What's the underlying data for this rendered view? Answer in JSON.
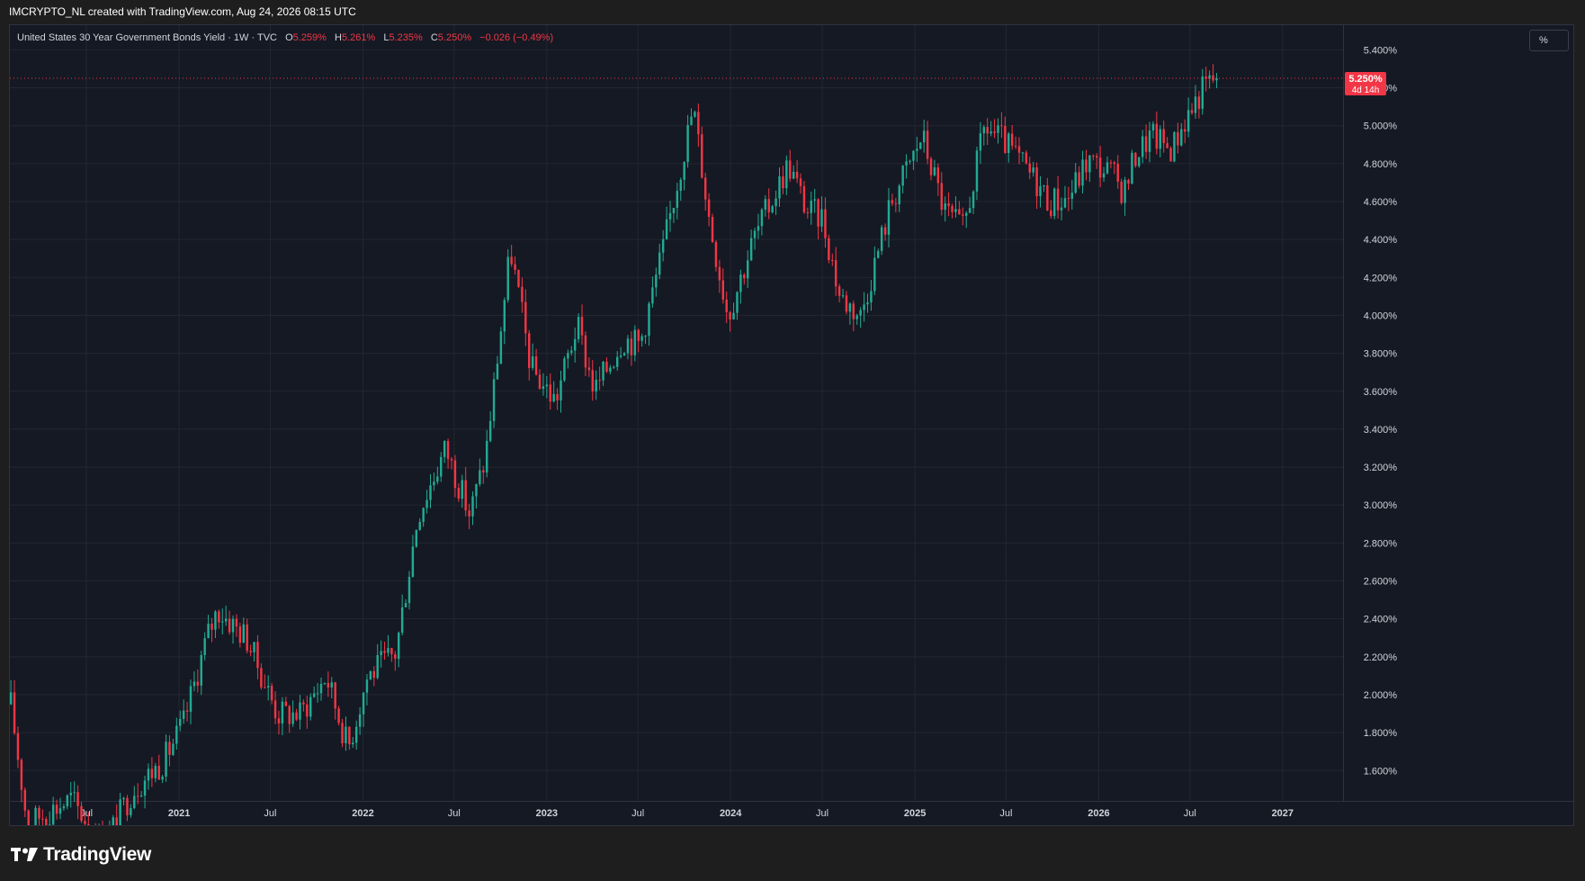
{
  "header": {
    "attribution": "IMCRYPTO_NL created with TradingView.com, Aug 24, 2026 08:15 UTC"
  },
  "legend": {
    "symbol": "United States 30 Year Government Bonds Yield · 1W · TVC",
    "o_label": "O",
    "o_value": "5.259%",
    "h_label": "H",
    "h_value": "5.261%",
    "l_label": "L",
    "l_value": "5.235%",
    "c_label": "C",
    "c_value": "5.250%",
    "change": "−0.026 (−0.49%)"
  },
  "scale_button": {
    "label": "%"
  },
  "price_badge": {
    "value": "5.250%",
    "countdown": "4d 14h"
  },
  "footer": {
    "brand": "TradingView"
  },
  "colors": {
    "up": "#22ab94",
    "down": "#f23645",
    "background": "#151923",
    "grid": "#232733",
    "axis_text": "#d1d4dc"
  },
  "chart_data": {
    "type": "candlestick",
    "title": "United States 30 Year Government Bonds Yield",
    "interval": "1W",
    "y_unit": "%",
    "y_ticks": [
      "1.600%",
      "1.800%",
      "2.000%",
      "2.200%",
      "2.400%",
      "2.600%",
      "2.800%",
      "3.000%",
      "3.200%",
      "3.400%",
      "3.600%",
      "3.800%",
      "4.000%",
      "4.200%",
      "4.400%",
      "4.600%",
      "4.800%",
      "5.000%",
      "5.200%",
      "5.400%"
    ],
    "y_range": [
      1.44,
      5.53
    ],
    "x_ticks": [
      "Jul",
      "2021",
      "Jul",
      "2022",
      "Jul",
      "2023",
      "Jul",
      "2024",
      "Jul",
      "2025",
      "Jul",
      "2026",
      "Jul",
      "2027"
    ],
    "x_range": [
      "2020-01-31",
      "2027-05-01"
    ],
    "last_price": 5.25,
    "grid": true,
    "anchors": [
      [
        "2020-02-02",
        1.95
      ],
      [
        "2020-03-09",
        1.25
      ],
      [
        "2020-03-23",
        1.35
      ],
      [
        "2020-06-01",
        1.45
      ],
      [
        "2020-08-03",
        1.2
      ],
      [
        "2020-10-01",
        1.5
      ],
      [
        "2020-12-01",
        1.65
      ],
      [
        "2021-01-10",
        1.85
      ],
      [
        "2021-02-25",
        2.3
      ],
      [
        "2021-03-18",
        2.45
      ],
      [
        "2021-05-15",
        2.3
      ],
      [
        "2021-07-15",
        1.9
      ],
      [
        "2021-08-30",
        1.9
      ],
      [
        "2021-10-20",
        2.1
      ],
      [
        "2021-12-03",
        1.72
      ],
      [
        "2022-01-10",
        2.1
      ],
      [
        "2022-03-07",
        2.22
      ],
      [
        "2022-04-20",
        2.95
      ],
      [
        "2022-06-14",
        3.3
      ],
      [
        "2022-08-01",
        2.95
      ],
      [
        "2022-09-01",
        3.25
      ],
      [
        "2022-10-21",
        4.35
      ],
      [
        "2022-12-01",
        3.72
      ],
      [
        "2023-01-18",
        3.55
      ],
      [
        "2023-03-02",
        3.95
      ],
      [
        "2023-04-06",
        3.6
      ],
      [
        "2023-06-01",
        3.88
      ],
      [
        "2023-07-05",
        3.85
      ],
      [
        "2023-08-20",
        4.35
      ],
      [
        "2023-10-19",
        5.1
      ],
      [
        "2023-11-20",
        4.5
      ],
      [
        "2023-12-27",
        4.0
      ],
      [
        "2024-02-15",
        4.4
      ],
      [
        "2024-04-25",
        4.8
      ],
      [
        "2024-06-01",
        4.55
      ],
      [
        "2024-07-01",
        4.52
      ],
      [
        "2024-08-05",
        4.1
      ],
      [
        "2024-09-15",
        4.0
      ],
      [
        "2024-11-15",
        4.6
      ],
      [
        "2024-12-30",
        4.85
      ],
      [
        "2025-01-15",
        4.95
      ],
      [
        "2025-03-01",
        4.55
      ],
      [
        "2025-04-07",
        4.45
      ],
      [
        "2025-05-20",
        5.0
      ],
      [
        "2025-07-01",
        4.9
      ],
      [
        "2025-09-01",
        4.7
      ],
      [
        "2025-09-25",
        4.6
      ],
      [
        "2025-11-01",
        4.62
      ],
      [
        "2025-12-10",
        4.82
      ],
      [
        "2026-01-26",
        4.75
      ],
      [
        "2026-02-20",
        4.65
      ],
      [
        "2026-03-15",
        4.85
      ],
      [
        "2026-04-15",
        4.95
      ],
      [
        "2026-05-25",
        4.88
      ],
      [
        "2026-06-25",
        5.05
      ],
      [
        "2026-08-01",
        5.22
      ],
      [
        "2026-08-24",
        5.25
      ]
    ],
    "candles_per_week": 1,
    "series": [
      {
        "name": "Up",
        "color": "#22ab94"
      },
      {
        "name": "Down",
        "color": "#f23645"
      }
    ]
  }
}
